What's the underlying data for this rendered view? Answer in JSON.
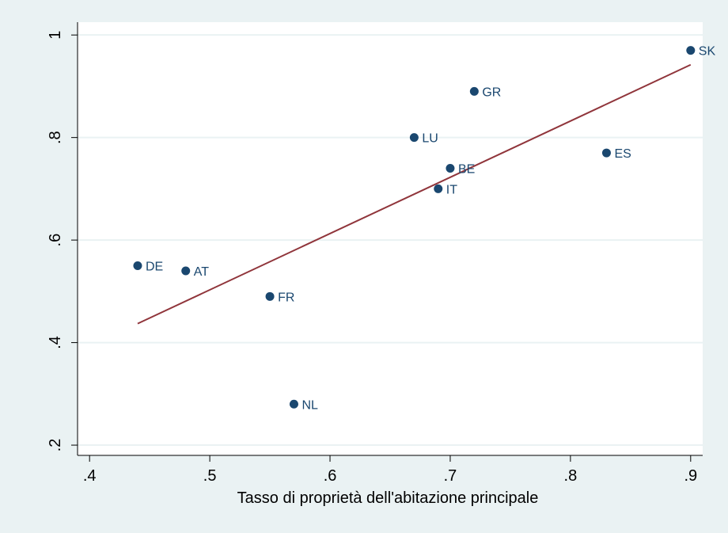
{
  "chart_data": {
    "type": "scatter",
    "title": "",
    "xlabel": "Tasso di proprietà dell'abitazione principale",
    "ylabel": "",
    "xlim": [
      0.39,
      0.91
    ],
    "ylim": [
      0.18,
      1.025
    ],
    "x_ticks": [
      {
        "value": 0.4,
        "label": ".4"
      },
      {
        "value": 0.5,
        "label": ".5"
      },
      {
        "value": 0.6,
        "label": ".6"
      },
      {
        "value": 0.7,
        "label": ".7"
      },
      {
        "value": 0.8,
        "label": ".8"
      },
      {
        "value": 0.9,
        "label": ".9"
      }
    ],
    "y_ticks": [
      {
        "value": 0.2,
        "label": ".2"
      },
      {
        "value": 0.4,
        "label": ".4"
      },
      {
        "value": 0.6,
        "label": ".6"
      },
      {
        "value": 0.8,
        "label": ".8"
      },
      {
        "value": 1.0,
        "label": "1"
      }
    ],
    "grid": true,
    "legend": "none",
    "points": [
      {
        "label": "DE",
        "x": 0.44,
        "y": 0.55
      },
      {
        "label": "AT",
        "x": 0.48,
        "y": 0.54
      },
      {
        "label": "FR",
        "x": 0.55,
        "y": 0.49
      },
      {
        "label": "NL",
        "x": 0.57,
        "y": 0.28
      },
      {
        "label": "LU",
        "x": 0.67,
        "y": 0.8
      },
      {
        "label": "IT",
        "x": 0.69,
        "y": 0.7
      },
      {
        "label": "BE",
        "x": 0.7,
        "y": 0.74
      },
      {
        "label": "GR",
        "x": 0.72,
        "y": 0.89
      },
      {
        "label": "ES",
        "x": 0.83,
        "y": 0.77
      },
      {
        "label": "SK",
        "x": 0.9,
        "y": 0.97
      }
    ],
    "fit_line": {
      "x": [
        0.44,
        0.9
      ],
      "y": [
        0.437,
        0.942
      ]
    },
    "colors": {
      "background": "#eaf2f3",
      "plot_area": "#ffffff",
      "point": "#1a476f",
      "fit_line": "#90353b",
      "grid": "#eaf2f3"
    }
  }
}
